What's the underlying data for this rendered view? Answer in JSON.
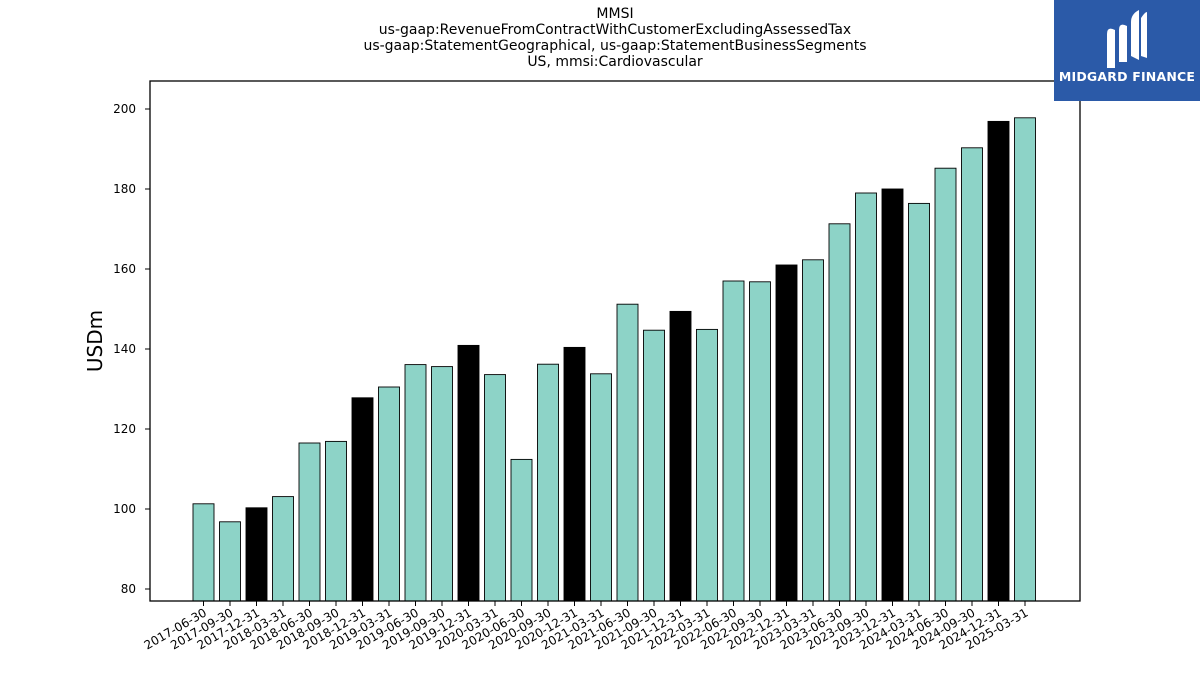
{
  "title_lines": [
    "MMSI",
    "us-gaap:RevenueFromContractWithCustomerExcludingAssessedTax",
    "us-gaap:StatementGeographical, us-gaap:StatementBusinessSegments",
    "US, mmsi:Cardiovascular"
  ],
  "logo": {
    "text": "MIDGARD FINANCE",
    "icon": "midgard-m-logo-icon",
    "bg_color": "#2b5aa8"
  },
  "colors": {
    "bar_regular": "#8dd3c7",
    "bar_year_end": "#000000",
    "outline": "#000000"
  },
  "chart_data": {
    "type": "bar",
    "ylabel": "USDm",
    "xlabel": "",
    "ylim": [
      77,
      207
    ],
    "yticks": [
      80,
      100,
      120,
      140,
      160,
      180,
      200
    ],
    "grid": false,
    "categories": [
      "2017-06-30",
      "2017-09-30",
      "2017-12-31",
      "2018-03-31",
      "2018-06-30",
      "2018-09-30",
      "2018-12-31",
      "2019-03-31",
      "2019-06-30",
      "2019-09-30",
      "2019-12-31",
      "2020-03-31",
      "2020-06-30",
      "2020-09-30",
      "2020-12-31",
      "2021-03-31",
      "2021-06-30",
      "2021-09-30",
      "2021-12-31",
      "2022-03-31",
      "2022-06-30",
      "2022-09-30",
      "2022-12-31",
      "2023-03-31",
      "2023-06-30",
      "2023-09-30",
      "2023-12-31",
      "2024-03-31",
      "2024-06-30",
      "2024-09-30",
      "2024-12-31",
      "2025-03-31"
    ],
    "values": [
      101.3,
      96.8,
      100.3,
      103.1,
      116.5,
      116.9,
      127.8,
      130.5,
      136.1,
      135.6,
      140.9,
      133.6,
      112.4,
      136.2,
      140.4,
      133.8,
      151.2,
      144.7,
      149.4,
      144.9,
      157.0,
      156.8,
      161.0,
      162.3,
      171.3,
      179.0,
      180.0,
      176.4,
      185.2,
      190.3,
      196.9,
      197.8
    ],
    "highlight_year_end": [
      false,
      false,
      true,
      false,
      false,
      false,
      true,
      false,
      false,
      false,
      true,
      false,
      false,
      false,
      true,
      false,
      false,
      false,
      true,
      false,
      false,
      false,
      true,
      false,
      false,
      false,
      true,
      false,
      false,
      false,
      true,
      false
    ]
  }
}
